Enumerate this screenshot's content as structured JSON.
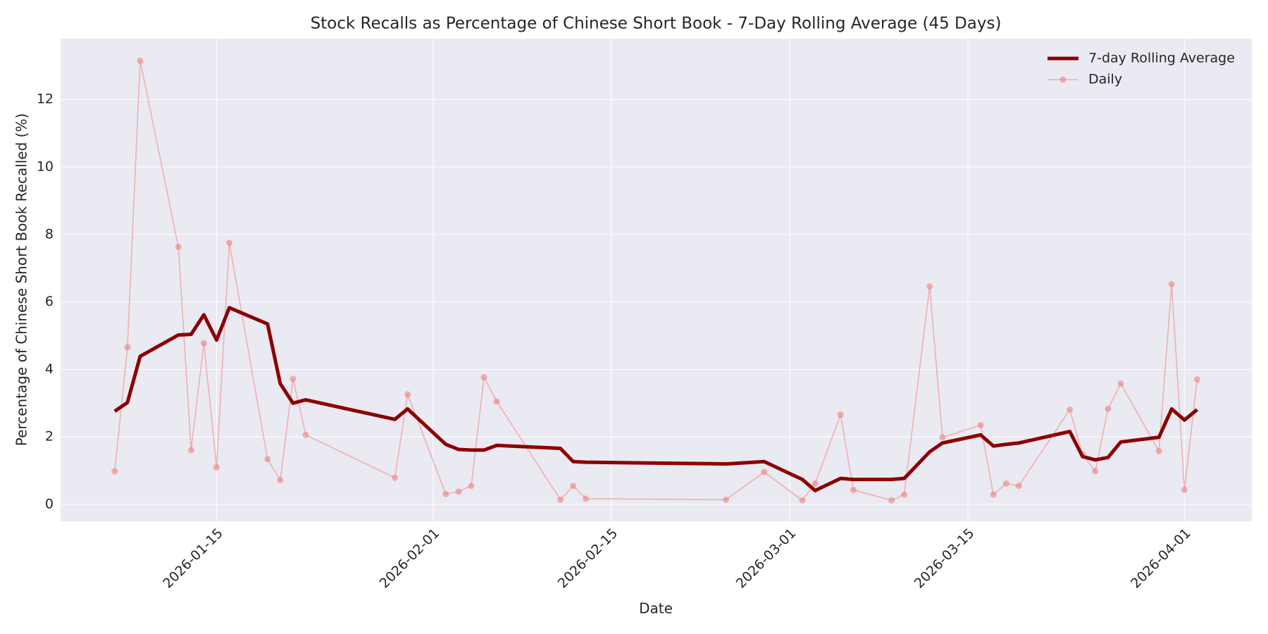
{
  "chart_data": {
    "type": "line",
    "title": "Stock Recalls as Percentage of Chinese Short Book - 7-Day Rolling Average (45 Days)",
    "xlabel": "Date",
    "ylabel": "Percentage of Chinese Short Book Recalled (%)",
    "x": [
      "2026-01-07",
      "2026-01-08",
      "2026-01-09",
      "2026-01-12",
      "2026-01-13",
      "2026-01-14",
      "2026-01-15",
      "2026-01-16",
      "2026-01-19",
      "2026-01-20",
      "2026-01-21",
      "2026-01-22",
      "2026-01-29",
      "2026-01-30",
      "2026-02-02",
      "2026-02-03",
      "2026-02-04",
      "2026-02-05",
      "2026-02-06",
      "2026-02-11",
      "2026-02-12",
      "2026-02-13",
      "2026-02-24",
      "2026-02-27",
      "2026-03-02",
      "2026-03-03",
      "2026-03-05",
      "2026-03-06",
      "2026-03-09",
      "2026-03-10",
      "2026-03-12",
      "2026-03-13",
      "2026-03-16",
      "2026-03-17",
      "2026-03-18",
      "2026-03-19",
      "2026-03-23",
      "2026-03-24",
      "2026-03-25",
      "2026-03-26",
      "2026-03-27",
      "2026-03-30",
      "2026-03-31",
      "2026-04-01",
      "2026-04-02"
    ],
    "series": [
      {
        "name": "7-day Rolling Average",
        "color": "#8b0000",
        "markers": false,
        "values": [
          2.76,
          3.02,
          4.39,
          5.02,
          5.04,
          5.62,
          4.87,
          5.83,
          5.35,
          3.58,
          3.0,
          3.1,
          2.52,
          2.83,
          1.78,
          1.63,
          1.61,
          1.61,
          1.75,
          1.66,
          1.27,
          1.25,
          1.2,
          1.27,
          0.74,
          0.41,
          0.77,
          0.74,
          0.74,
          0.77,
          1.56,
          1.82,
          2.06,
          1.73,
          1.78,
          1.82,
          2.16,
          1.42,
          1.32,
          1.39,
          1.85,
          1.99,
          2.83,
          2.5,
          2.81
        ]
      },
      {
        "name": "Daily",
        "color": "#f08080",
        "markers": true,
        "values": [
          0.98,
          4.66,
          13.15,
          7.63,
          1.61,
          4.78,
          1.1,
          7.75,
          1.34,
          0.72,
          3.72,
          2.06,
          0.79,
          3.26,
          0.31,
          0.38,
          0.55,
          3.77,
          3.05,
          0.14,
          0.55,
          0.17,
          0.14,
          0.96,
          0.12,
          0.62,
          2.66,
          0.43,
          0.12,
          0.29,
          6.46,
          1.99,
          2.35,
          0.29,
          0.62,
          0.55,
          2.81,
          1.49,
          0.98,
          2.83,
          3.58,
          1.58,
          6.53,
          0.43,
          3.7
        ]
      }
    ],
    "xlim": [
      "2026-01-02T18:00",
      "2026-04-06T07:00"
    ],
    "xticks": [
      "2026-01-15",
      "2026-02-01",
      "2026-02-15",
      "2026-03-01",
      "2026-03-15",
      "2026-04-01"
    ],
    "ylim": [
      -0.5,
      13.8
    ],
    "yticks": [
      0,
      2,
      4,
      6,
      8,
      10,
      12
    ],
    "grid": true,
    "legend": "upper right"
  }
}
